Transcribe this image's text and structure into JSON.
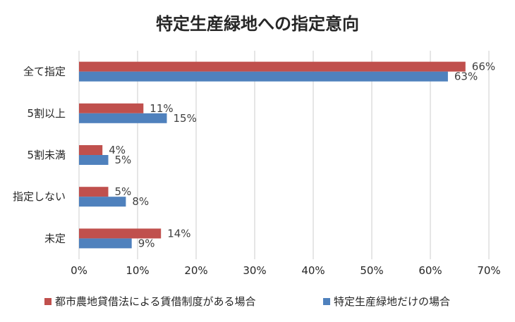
{
  "chart_data": {
    "type": "bar",
    "orientation": "horizontal",
    "title": "特定生産緑地への指定意向",
    "categories": [
      "全て指定",
      "5割以上",
      "5割未満",
      "指定しない",
      "未定"
    ],
    "series": [
      {
        "name": "都市農地貸借法による賃借制度がある場合",
        "values": [
          66,
          11,
          4,
          5,
          14
        ],
        "color": "#c0504d"
      },
      {
        "name": "特定生産緑地だけの場合",
        "values": [
          63,
          15,
          5,
          8,
          9
        ],
        "color": "#4f81bd"
      }
    ],
    "xlim": [
      0,
      70
    ],
    "xticks": [
      "0%",
      "10%",
      "20%",
      "30%",
      "40%",
      "50%",
      "60%",
      "70%"
    ],
    "value_suffix": "%",
    "grid": "vertical",
    "legend_position": "bottom"
  }
}
